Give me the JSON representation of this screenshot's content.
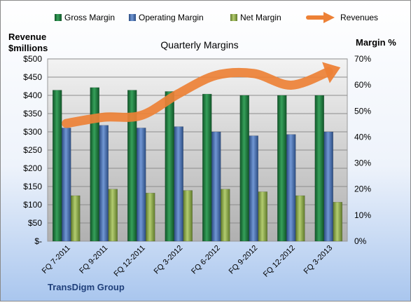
{
  "chart_data": {
    "type": "bar",
    "title": "Quarterly Margins",
    "company": "TransDigm Group",
    "left_axis": {
      "label_line1": "Revenue",
      "label_line2": "$millions",
      "range": [
        0,
        500
      ],
      "ticks": [
        0,
        50,
        100,
        150,
        200,
        250,
        300,
        350,
        400,
        450,
        500
      ],
      "tick_labels": [
        "$-",
        "$50",
        "$100",
        "$150",
        "$200",
        "$250",
        "$300",
        "$350",
        "$400",
        "$450",
        "$500"
      ]
    },
    "right_axis": {
      "label": "Margin %",
      "range": [
        0,
        70
      ],
      "ticks": [
        0,
        10,
        20,
        30,
        40,
        50,
        60,
        70
      ],
      "tick_labels": [
        "0%",
        "10%",
        "20%",
        "30%",
        "40%",
        "50%",
        "60%",
        "70%"
      ]
    },
    "categories": [
      "FQ 7-2011",
      "FQ 9-2011",
      "FQ 12-2011",
      "FQ 3-2012",
      "FQ 6-2012",
      "FQ 9-2012",
      "FQ 12-2012",
      "FQ 3-2013"
    ],
    "series": [
      {
        "name": "Gross Margin",
        "kind": "bar",
        "axis": "right",
        "color": "#1f7a3d",
        "values": [
          58.0,
          59.0,
          58.0,
          57.5,
          56.5,
          56.0,
          56.0,
          56.0
        ]
      },
      {
        "name": "Operating Margin",
        "kind": "bar",
        "axis": "right",
        "color": "#4a6ea9",
        "values": [
          43.5,
          44.5,
          43.5,
          44.0,
          42.0,
          40.5,
          41.0,
          42.0
        ]
      },
      {
        "name": "Net Margin",
        "kind": "bar",
        "axis": "right",
        "color": "#8fad4a",
        "values": [
          17.5,
          20.0,
          18.5,
          19.5,
          20.0,
          19.0,
          17.5,
          15.0
        ]
      },
      {
        "name": "Revenues",
        "kind": "line",
        "axis": "left",
        "color": "#ed8136",
        "values": [
          323,
          340,
          345,
          405,
          455,
          460,
          428,
          465
        ]
      }
    ],
    "grid": true,
    "legend_position": "top"
  }
}
